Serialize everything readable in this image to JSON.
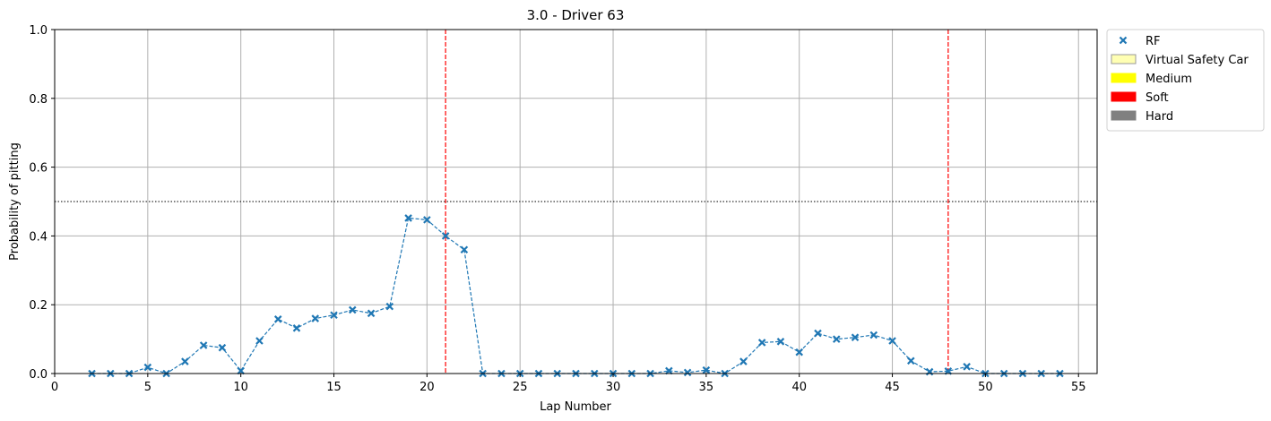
{
  "chart_data": {
    "type": "line",
    "title": "3.0 - Driver 63",
    "xlabel": "Lap Number",
    "ylabel": "Probability of pitting",
    "xlim": [
      0,
      56
    ],
    "ylim": [
      0,
      1.0
    ],
    "xticks": [
      0,
      5,
      10,
      15,
      20,
      25,
      30,
      35,
      40,
      45,
      50,
      55
    ],
    "yticks": [
      0.0,
      0.2,
      0.4,
      0.6,
      0.8,
      1.0
    ],
    "grid": true,
    "threshold": 0.5,
    "pit_laps": [
      21,
      48
    ],
    "series": [
      {
        "name": "RF",
        "color": "#1f77b4",
        "marker": "x",
        "x": [
          2,
          3,
          4,
          5,
          6,
          7,
          8,
          9,
          10,
          11,
          12,
          13,
          14,
          15,
          16,
          17,
          18,
          19,
          20,
          21,
          22,
          23,
          24,
          25,
          26,
          27,
          28,
          29,
          30,
          31,
          32,
          33,
          34,
          35,
          36,
          37,
          38,
          39,
          40,
          41,
          42,
          43,
          44,
          45,
          46,
          47,
          48,
          49,
          50,
          51,
          52,
          53,
          54
        ],
        "y": [
          0.0,
          0.0,
          0.0,
          0.018,
          0.0,
          0.035,
          0.082,
          0.075,
          0.008,
          0.095,
          0.158,
          0.132,
          0.16,
          0.17,
          0.185,
          0.175,
          0.195,
          0.452,
          0.447,
          0.4,
          0.36,
          0.0,
          0.0,
          0.0,
          0.0,
          0.0,
          0.0,
          0.0,
          0.0,
          0.0,
          0.0,
          0.008,
          0.003,
          0.01,
          0.0,
          0.035,
          0.09,
          0.093,
          0.062,
          0.117,
          0.1,
          0.105,
          0.112,
          0.095,
          0.037,
          0.005,
          0.007,
          0.02,
          0.0,
          0.0,
          0.0,
          0.0,
          0.0
        ]
      }
    ],
    "legend": {
      "placement": "outside-top-right",
      "entries": [
        {
          "label": "RF",
          "kind": "marker",
          "color": "#1f77b4"
        },
        {
          "label": "Virtual Safety Car",
          "kind": "patch",
          "color": "#ffffb3",
          "edge": "#999999"
        },
        {
          "label": "Medium",
          "kind": "patch",
          "color": "#ffff00"
        },
        {
          "label": "Soft",
          "kind": "patch",
          "color": "#ff0000"
        },
        {
          "label": "Hard",
          "kind": "patch",
          "color": "#808080"
        }
      ]
    }
  }
}
